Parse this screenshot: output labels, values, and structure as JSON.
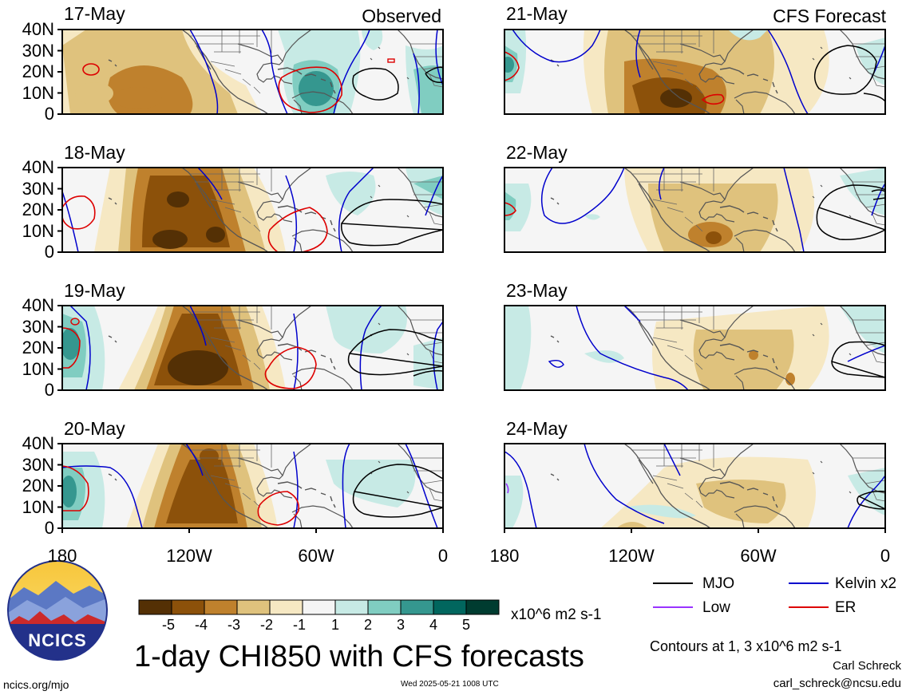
{
  "title": "1-day CHI850 with CFS forecasts",
  "panels_left_tag": "Observed",
  "panels_right_tag": "CFS Forecast",
  "left_dates": [
    "17-May",
    "18-May",
    "19-May",
    "20-May"
  ],
  "right_dates": [
    "21-May",
    "22-May",
    "23-May",
    "24-May"
  ],
  "lat_labels": [
    "40N",
    "30N",
    "20N",
    "10N",
    "0"
  ],
  "lon_labels": [
    "180",
    "120W",
    "60W",
    "0"
  ],
  "colorbar": {
    "labels": [
      "-5",
      "-4",
      "-3",
      "-2",
      "-1",
      "1",
      "2",
      "3",
      "4",
      "5"
    ],
    "colors": [
      "#543005",
      "#8c510a",
      "#bf812d",
      "#dfc27d",
      "#f6e8c3",
      "#f5f5f5",
      "#c7eae5",
      "#80cdc1",
      "#35978f",
      "#01665e",
      "#003c30"
    ],
    "units": "x10^6 m2 s-1"
  },
  "legend": [
    {
      "label": "MJO",
      "color": "#000000"
    },
    {
      "label": "Kelvin x2",
      "color": "#0000cc"
    },
    {
      "label": "Low",
      "color": "#9933ff"
    },
    {
      "label": "ER",
      "color": "#dd0000"
    }
  ],
  "contour_note": "Contours at 1, 3 x10^6 m2 s-1",
  "author": "Carl Schreck",
  "email": "carl_schreck@ncsu.edu",
  "site": "ncics.org/mjo",
  "timestamp": "Wed 2025-05-21 1008 UTC",
  "logo": {
    "text": "NCICS"
  }
}
